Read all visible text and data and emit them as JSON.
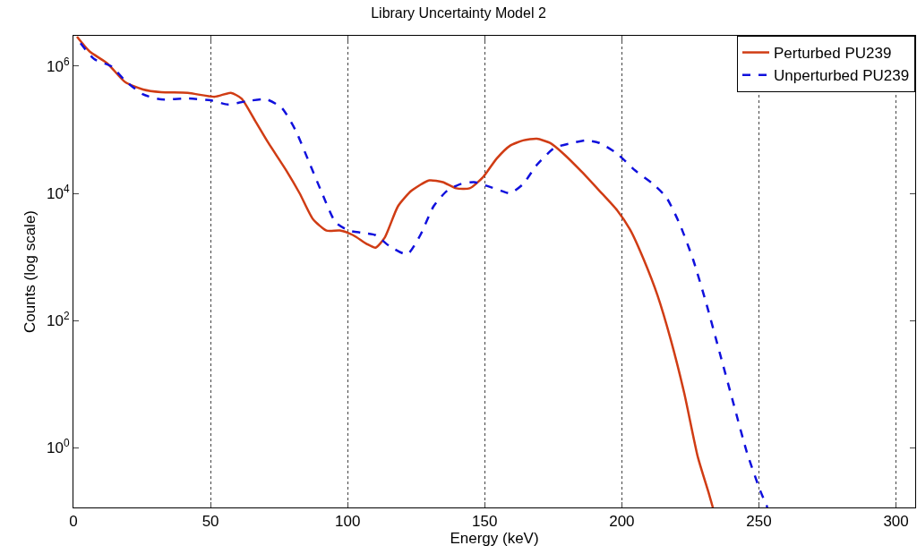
{
  "chart_data": {
    "type": "line",
    "title": "Library Uncertainty Model 2",
    "xlabel": "Energy (keV)",
    "ylabel": "Counts (log scale)",
    "log": "y",
    "grid": "x",
    "legend": "top right",
    "marker": "none",
    "xlim": [
      0,
      307
    ],
    "xticks": [
      0,
      50,
      100,
      150,
      200,
      250,
      300
    ],
    "ylim": [
      0.115,
      3000000
    ],
    "yticks": [
      {
        "value": 1,
        "label": "10$^{0}$"
      },
      {
        "value": 100,
        "label": "10$^{2}$"
      },
      {
        "value": 10000,
        "label": "10$^{4}$"
      },
      {
        "value": 1000000,
        "label": "10$^{6}$"
      }
    ],
    "series": [
      {
        "name": "Perturbed PU239",
        "color": "#d03c14",
        "line_style": "solid",
        "x": [
          1.3,
          5.9,
          12.4,
          18.9,
          25.4,
          32,
          41.7,
          51.5,
          57.4,
          61.3,
          66.2,
          71.1,
          77.6,
          82.5,
          87.4,
          92.3,
          97.2,
          102,
          107,
          110.2,
          113.5,
          118.4,
          123.3,
          129.8,
          134.7,
          139.6,
          144.5,
          149.4,
          154.3,
          159.2,
          164,
          169,
          173.8,
          178.7,
          185.3,
          191.8,
          198.3,
          203.2,
          208,
          213,
          217.9,
          222.8,
          227.7,
          231.6,
          233.2
        ],
        "values": [
          2900000,
          1700000,
          1100000,
          560000,
          430000,
          390000,
          380000,
          330000,
          380000,
          310000,
          140000,
          62000,
          23000,
          10000,
          3900,
          2600,
          2600,
          2200,
          1600,
          1400,
          2000,
          6300,
          11000,
          16000,
          15000,
          12000,
          12000,
          18000,
          35000,
          56000,
          68000,
          72000,
          62000,
          42000,
          22000,
          11000,
          5400,
          2600,
          910,
          250,
          49,
          7.1,
          0.72,
          0.2,
          0.115
        ]
      },
      {
        "name": "Unperturbed PU239",
        "color": "#1010dd",
        "line_style": "dashed",
        "x": [
          2.6,
          7.5,
          14,
          18.9,
          25.4,
          32,
          41.7,
          50,
          56.4,
          62.9,
          70.4,
          76,
          80.9,
          85.8,
          90.7,
          95.6,
          100.5,
          105.3,
          110.2,
          115.1,
          121.7,
          126.5,
          131.4,
          136.3,
          141.2,
          146.1,
          151,
          155.9,
          159.2,
          164,
          169,
          175.5,
          182,
          186.9,
          191.8,
          198.3,
          204.8,
          211.4,
          216.2,
          221.1,
          226,
          230.9,
          235.8,
          240.7,
          245.6,
          250.5,
          253.1
        ],
        "values": [
          2300000,
          1300000,
          980000,
          590000,
          360000,
          300000,
          310000,
          290000,
          250000,
          280000,
          300000,
          220000,
          100000,
          32000,
          10000,
          3500,
          2600,
          2400,
          2200,
          1500,
          1100,
          2200,
          6300,
          11000,
          14000,
          15000,
          13000,
          11000,
          10000,
          14000,
          28000,
          52000,
          62000,
          68000,
          62000,
          42000,
          23000,
          14000,
          8700,
          3300,
          910,
          180,
          30,
          5,
          0.85,
          0.21,
          0.115
        ]
      }
    ]
  }
}
